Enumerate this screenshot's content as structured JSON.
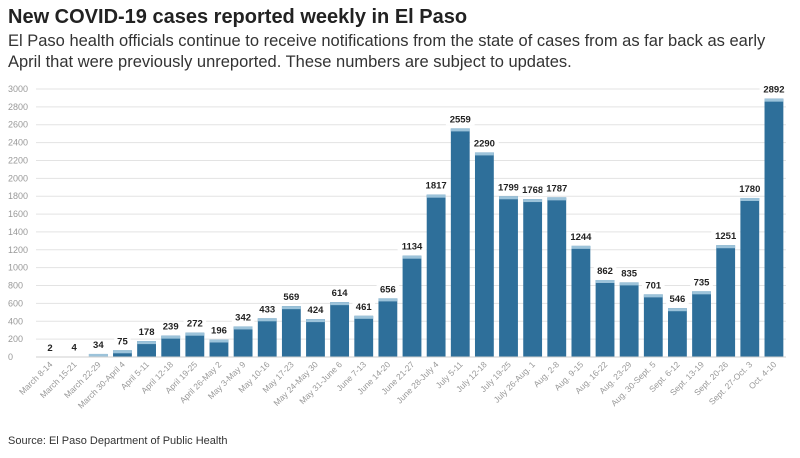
{
  "chart_data": {
    "type": "bar",
    "title": "New COVID-19 cases reported weekly in El Paso",
    "subtitle": "El Paso health officials continue to receive notifications from the state of cases from as far back as early April that were previously unreported. These numbers are subject to updates.",
    "source": "Source: El Paso Department of Public Health",
    "xlabel": "",
    "ylabel": "",
    "ylim": [
      0,
      3000
    ],
    "yticks": [
      0,
      200,
      400,
      600,
      800,
      1000,
      1200,
      1400,
      1600,
      1800,
      2000,
      2200,
      2400,
      2600,
      2800,
      3000
    ],
    "grid": true,
    "categories": [
      "March 8-14",
      "March 15-21",
      "March 22-29",
      "March 30-April 4",
      "April 5-11",
      "April 12-18",
      "April 19-25",
      "April 26-May 2",
      "May 3-May 9",
      "May 10-16",
      "May 17-23",
      "May 24-May 30",
      "May 31-June 6",
      "June 7-13",
      "June 14-20",
      "June 21-27",
      "June 28-July 4",
      "July 5-11",
      "July 12-18",
      "July 19-25",
      "July 26-Aug. 1",
      "Aug. 2-8",
      "Aug. 9-15",
      "Aug. 16-22",
      "Aug. 23-29",
      "Aug. 30-Sept. 5",
      "Sept. 6-12",
      "Sept. 13-19",
      "Sept. 20-26",
      "Sept. 27-Oct. 3",
      "Oct. 4-10"
    ],
    "values": [
      2,
      4,
      34,
      75,
      178,
      239,
      272,
      196,
      342,
      433,
      569,
      424,
      614,
      461,
      656,
      1134,
      1817,
      2559,
      2290,
      1799,
      1768,
      1787,
      1244,
      862,
      835,
      701,
      546,
      735,
      1251,
      1780,
      2892
    ],
    "colors": {
      "bar": "#2e6f9a",
      "bar_top": "#9cc3da",
      "grid": "#e3e3e3"
    }
  }
}
